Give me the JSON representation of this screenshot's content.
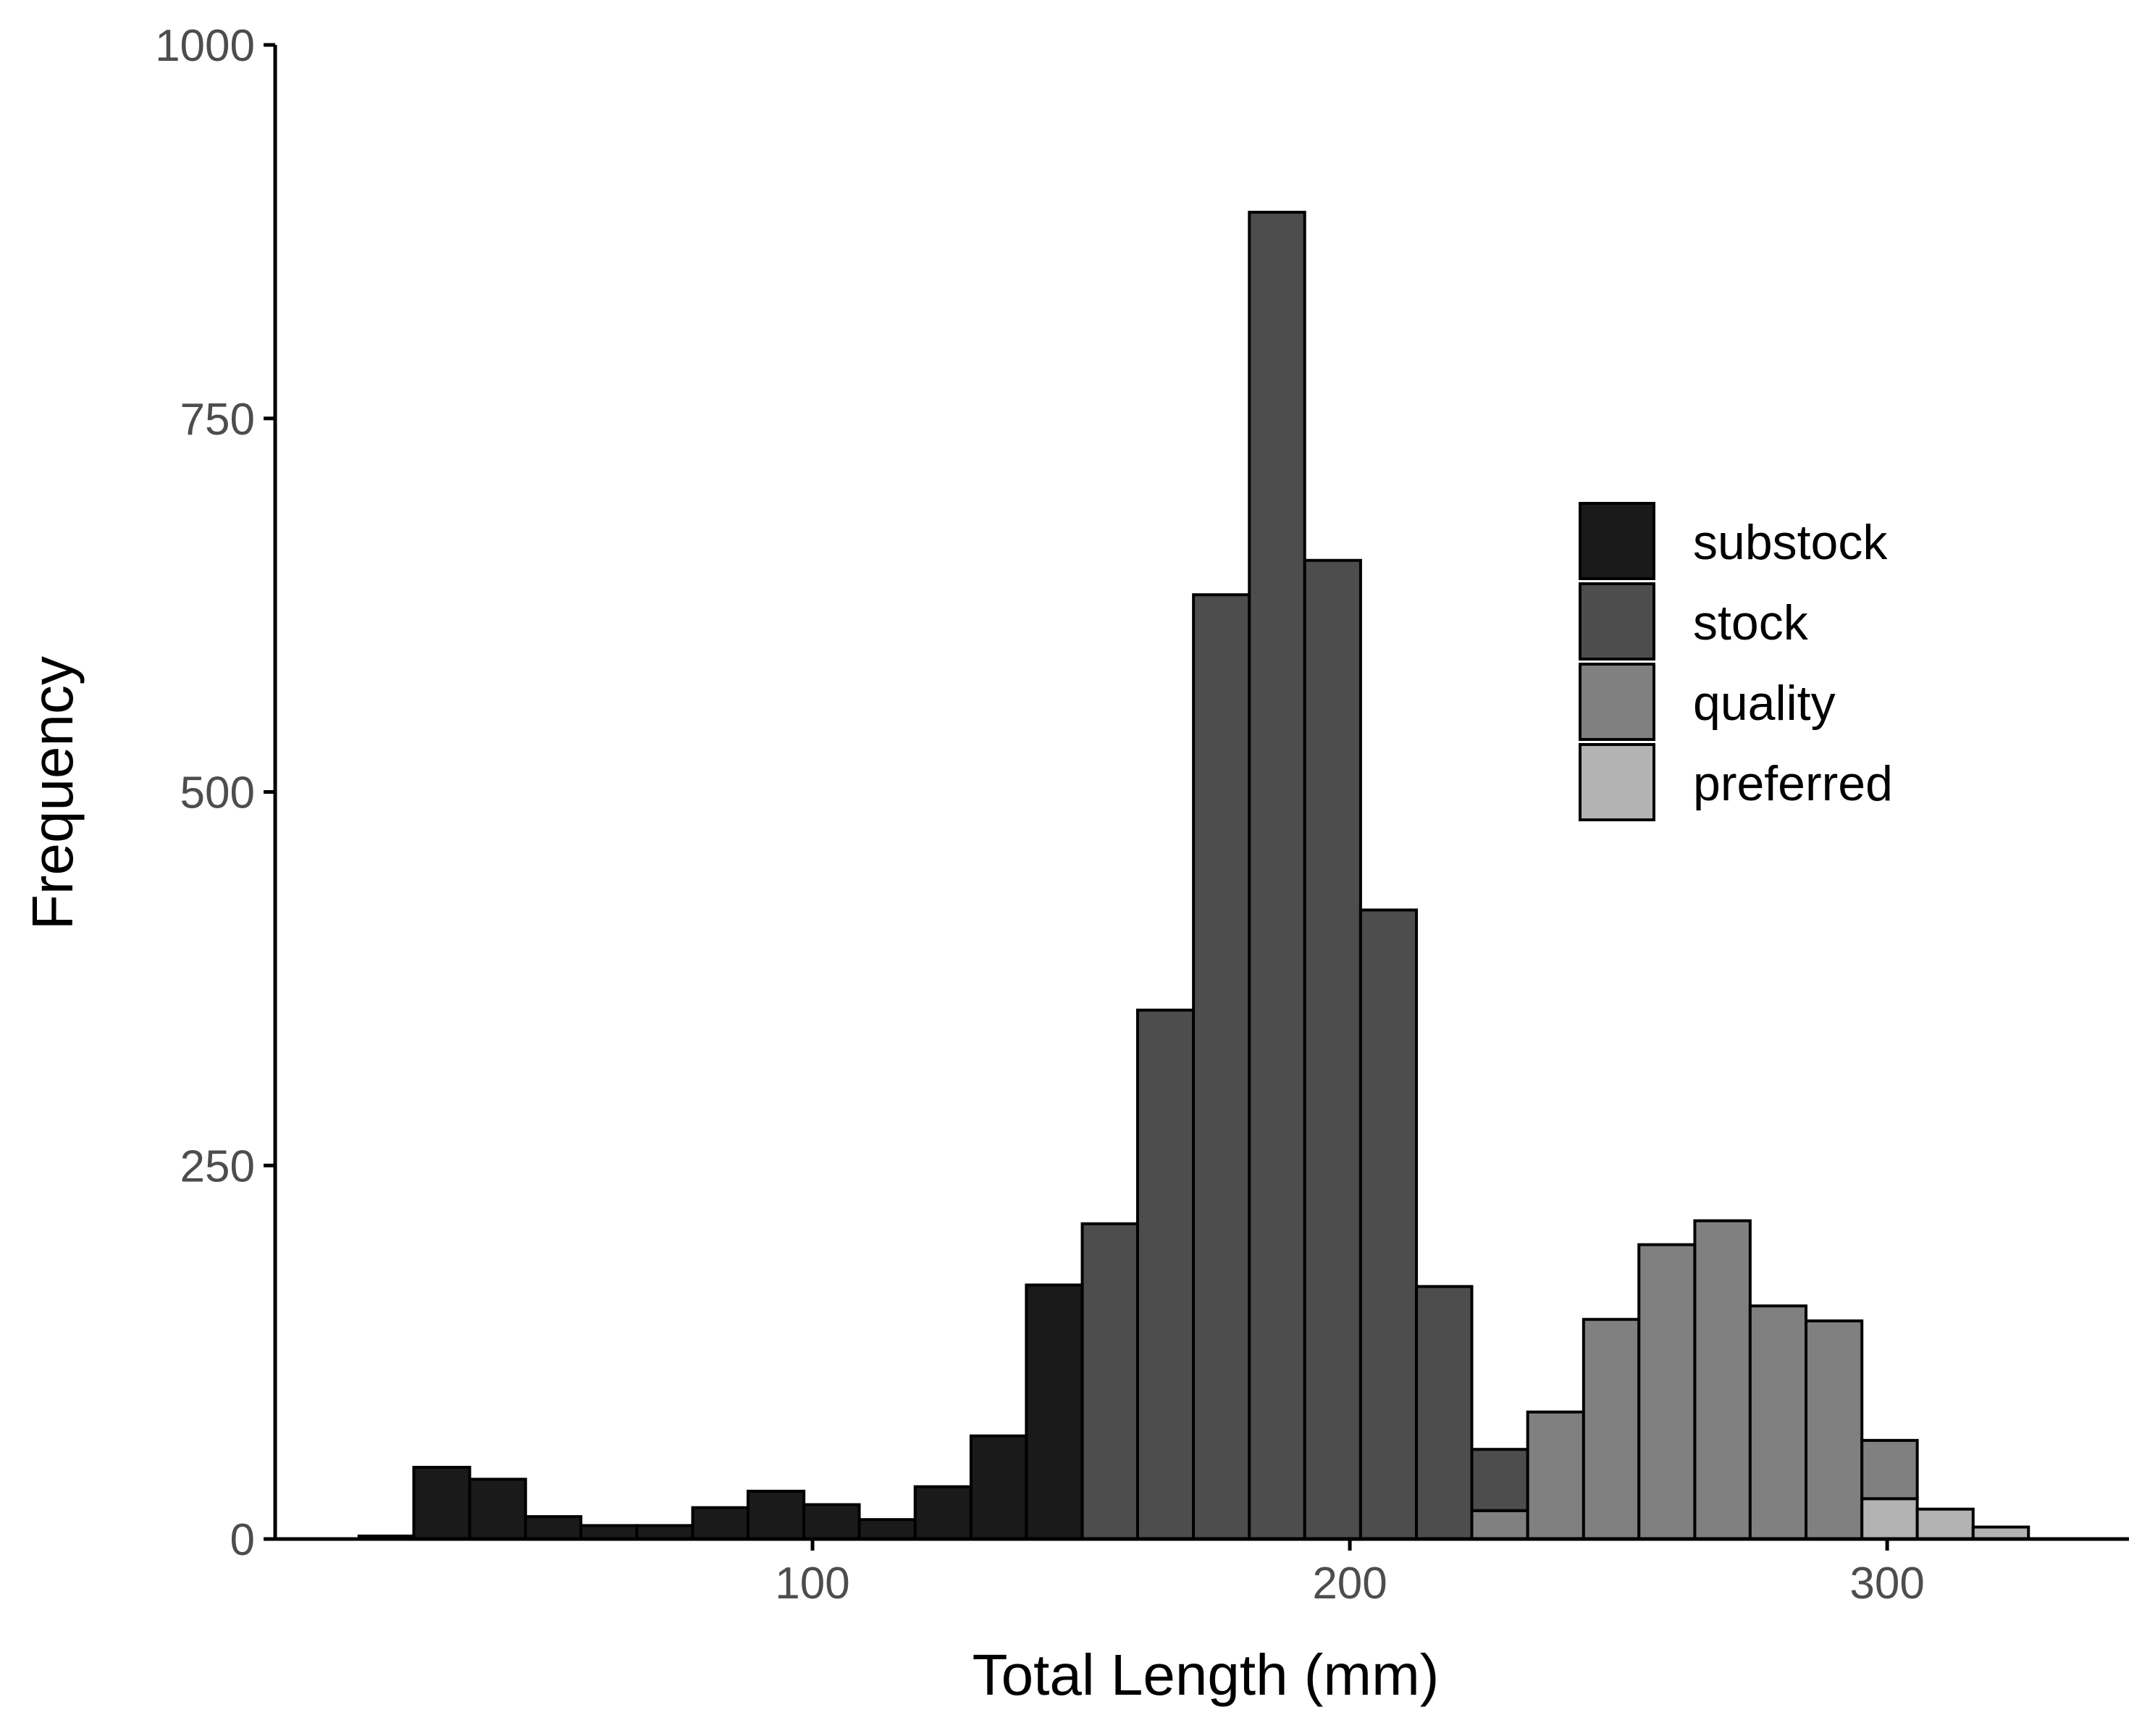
{
  "chart_data": {
    "type": "bar",
    "subtype": "stacked histogram",
    "xlabel": "Total Length (mm)",
    "ylabel": "Frequency",
    "xlim": [
      0,
      345
    ],
    "ylim": [
      0,
      1000
    ],
    "x_ticks": [
      100,
      200,
      300
    ],
    "x_tick_labels": [
      "100",
      "200",
      "300"
    ],
    "y_ticks": [
      0,
      250,
      500,
      750,
      1000
    ],
    "y_tick_labels": [
      "0",
      "250",
      "500",
      "750",
      "1000"
    ],
    "grid": false,
    "legend_position": "right",
    "legend": [
      "substock",
      "stock",
      "quality",
      "preferred"
    ],
    "colors": {
      "substock": "#1a1a1a",
      "stock": "#4d4d4d",
      "quality": "#808080",
      "preferred": "#b3b3b3",
      "outline": "#000000",
      "axis": "#000000"
    },
    "bins": [
      {
        "x0": 15.6,
        "x1": 25.8,
        "segments": [
          {
            "series": "substock",
            "value": 2
          }
        ]
      },
      {
        "x0": 25.8,
        "x1": 36.2,
        "segments": [
          {
            "series": "substock",
            "value": 48
          }
        ]
      },
      {
        "x0": 36.2,
        "x1": 46.6,
        "segments": [
          {
            "series": "substock",
            "value": 40
          }
        ]
      },
      {
        "x0": 46.6,
        "x1": 56.9,
        "segments": [
          {
            "series": "substock",
            "value": 15
          }
        ]
      },
      {
        "x0": 56.9,
        "x1": 67.3,
        "segments": [
          {
            "series": "substock",
            "value": 9
          }
        ]
      },
      {
        "x0": 67.3,
        "x1": 77.7,
        "segments": [
          {
            "series": "substock",
            "value": 9
          }
        ]
      },
      {
        "x0": 77.7,
        "x1": 88.0,
        "segments": [
          {
            "series": "substock",
            "value": 21
          }
        ]
      },
      {
        "x0": 88.0,
        "x1": 98.4,
        "segments": [
          {
            "series": "substock",
            "value": 32
          }
        ]
      },
      {
        "x0": 98.4,
        "x1": 108.7,
        "segments": [
          {
            "series": "substock",
            "value": 23
          }
        ]
      },
      {
        "x0": 108.7,
        "x1": 119.1,
        "segments": [
          {
            "series": "substock",
            "value": 13
          }
        ]
      },
      {
        "x0": 119.1,
        "x1": 129.5,
        "segments": [
          {
            "series": "substock",
            "value": 35
          }
        ]
      },
      {
        "x0": 129.5,
        "x1": 139.8,
        "segments": [
          {
            "series": "substock",
            "value": 69
          }
        ]
      },
      {
        "x0": 139.8,
        "x1": 150.2,
        "segments": [
          {
            "series": "substock",
            "value": 170
          }
        ]
      },
      {
        "x0": 150.2,
        "x1": 160.5,
        "segments": [
          {
            "series": "stock",
            "value": 211
          }
        ]
      },
      {
        "x0": 160.5,
        "x1": 170.9,
        "segments": [
          {
            "series": "stock",
            "value": 354
          }
        ]
      },
      {
        "x0": 170.9,
        "x1": 181.3,
        "segments": [
          {
            "series": "stock",
            "value": 632
          }
        ]
      },
      {
        "x0": 181.3,
        "x1": 191.6,
        "segments": [
          {
            "series": "stock",
            "value": 888
          }
        ]
      },
      {
        "x0": 191.6,
        "x1": 202.0,
        "segments": [
          {
            "series": "stock",
            "value": 655
          }
        ]
      },
      {
        "x0": 202.0,
        "x1": 212.4,
        "segments": [
          {
            "series": "stock",
            "value": 421
          }
        ]
      },
      {
        "x0": 212.4,
        "x1": 222.7,
        "segments": [
          {
            "series": "stock",
            "value": 169
          }
        ]
      },
      {
        "x0": 222.7,
        "x1": 233.1,
        "segments": [
          {
            "series": "quality",
            "value": 19
          },
          {
            "series": "stock",
            "value": 41
          }
        ]
      },
      {
        "x0": 233.1,
        "x1": 243.5,
        "segments": [
          {
            "series": "quality",
            "value": 85
          }
        ]
      },
      {
        "x0": 243.5,
        "x1": 253.8,
        "segments": [
          {
            "series": "quality",
            "value": 147
          }
        ]
      },
      {
        "x0": 253.8,
        "x1": 264.2,
        "segments": [
          {
            "series": "quality",
            "value": 197
          }
        ]
      },
      {
        "x0": 264.2,
        "x1": 274.5,
        "segments": [
          {
            "series": "quality",
            "value": 213
          }
        ]
      },
      {
        "x0": 274.5,
        "x1": 284.9,
        "segments": [
          {
            "series": "quality",
            "value": 156
          }
        ]
      },
      {
        "x0": 284.9,
        "x1": 295.3,
        "segments": [
          {
            "series": "quality",
            "value": 146
          }
        ]
      },
      {
        "x0": 295.3,
        "x1": 305.6,
        "segments": [
          {
            "series": "preferred",
            "value": 27
          },
          {
            "series": "quality",
            "value": 39
          }
        ]
      },
      {
        "x0": 305.6,
        "x1": 316.0,
        "segments": [
          {
            "series": "preferred",
            "value": 20
          }
        ]
      },
      {
        "x0": 316.0,
        "x1": 326.3,
        "segments": [
          {
            "series": "preferred",
            "value": 8
          }
        ]
      }
    ]
  }
}
